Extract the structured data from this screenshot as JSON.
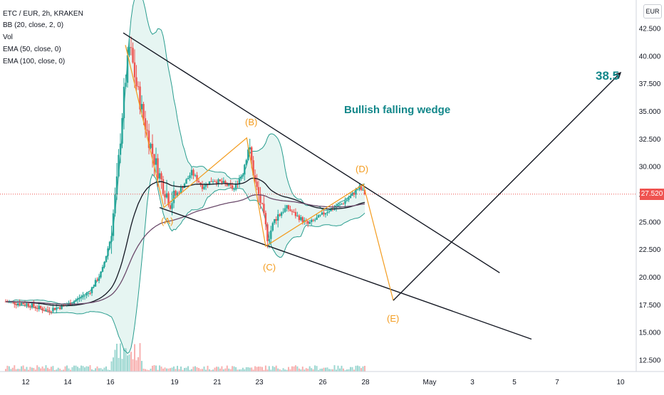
{
  "header": {
    "symbol_line": "ETC / EUR, 2h, KRAKEN",
    "indicators": [
      "BB (20, close, 2, 0)",
      "Vol",
      "EMA (50, close, 0)",
      "EMA (100, close, 0)"
    ],
    "currency": "EUR"
  },
  "annotations": {
    "pattern_title": "Bullish falling wedge",
    "target_label": "38.5",
    "waves": {
      "A": "(A)",
      "B": "(B)",
      "C": "(C)",
      "D": "(D)",
      "E": "(E)"
    }
  },
  "chart_data": {
    "type": "candlestick",
    "pair": "ETC / EUR",
    "interval": "2h",
    "exchange": "KRAKEN",
    "yaxis": {
      "ticks": [
        "42.500",
        "40.000",
        "37.500",
        "35.000",
        "32.500",
        "30.000",
        "27.500",
        "25.000",
        "22.500",
        "20.000",
        "17.500",
        "15.000",
        "12.500"
      ],
      "range": [
        12.0,
        44.0
      ]
    },
    "xaxis": {
      "ticks": [
        "12",
        "14",
        "16",
        "19",
        "21",
        "23",
        "26",
        "28",
        "May",
        "3",
        "5",
        "7",
        "10"
      ]
    },
    "last_price": "27.520",
    "colors": {
      "up": "#26a69a",
      "down": "#ef5350",
      "bb": "#2a9d8f",
      "bb_fill": "#e0f2ef",
      "ema50": "#131722",
      "ema100": "#6b4a6b",
      "wave": "#f39c1f",
      "trendline": "#131722",
      "accent": "#12878a"
    },
    "wedge": {
      "upper_line": [
        [
          "16.6",
          42.1
        ],
        [
          "4.3",
          20.4
        ]
      ],
      "lower_line": [
        [
          "18.3",
          26.3
        ],
        [
          "5.8",
          14.4
        ]
      ]
    },
    "waves": [
      {
        "label": "(A)",
        "date": "18.5",
        "price": 26.3
      },
      {
        "label": "(B)",
        "date": "22.4",
        "price": 32.6
      },
      {
        "label": "(C)",
        "date": "23.3",
        "price": 22.8
      },
      {
        "label": "(D)",
        "date": "27.9",
        "price": 28.4
      },
      {
        "label": "(E)",
        "date": "29.3",
        "price": 17.9
      }
    ],
    "projection": {
      "from": [
        "29.3",
        17.9
      ],
      "to": [
        "10.0",
        38.5
      ]
    }
  }
}
